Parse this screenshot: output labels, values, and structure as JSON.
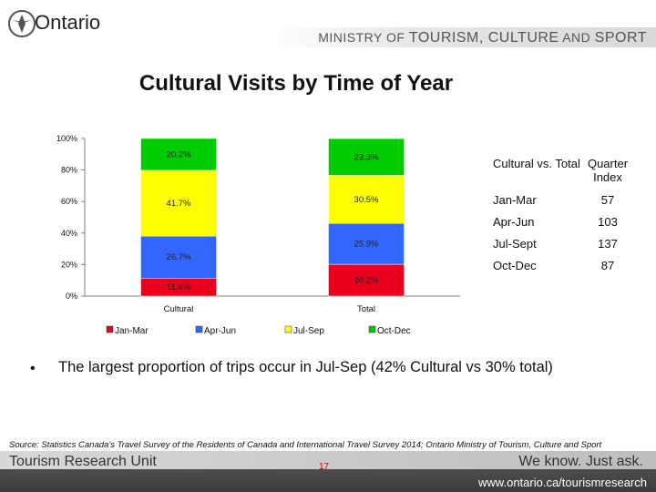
{
  "header": {
    "logo_text": "Ontario",
    "ministry_prefix": "MINISTRY OF ",
    "ministry_name_1": "TOURISM, CULTURE",
    "ministry_and": " AND ",
    "ministry_name_2": "SPORT"
  },
  "title": "Cultural Visits by Time of Year",
  "chart_data": {
    "type": "bar",
    "stacked": true,
    "categories": [
      "Cultural",
      "Total"
    ],
    "series": [
      {
        "name": "Jan-Mar",
        "values": [
          11.4,
          20.2
        ],
        "labels": [
          "11.4%",
          "20.2%"
        ],
        "color": "#e8001c"
      },
      {
        "name": "Apr-Jun",
        "values": [
          26.7,
          25.9
        ],
        "labels": [
          "26.7%",
          "25.9%"
        ],
        "color": "#3366ff"
      },
      {
        "name": "Jul-Sep",
        "values": [
          41.7,
          30.5
        ],
        "labels": [
          "41.7%",
          "30.5%"
        ],
        "color": "#ffff00"
      },
      {
        "name": "Oct-Dec",
        "values": [
          20.2,
          23.3
        ],
        "labels": [
          "20.2%",
          "23.3%"
        ],
        "color": "#00cc00"
      }
    ],
    "ylim": [
      0,
      100
    ],
    "yticks": [
      "0%",
      "20%",
      "40%",
      "60%",
      "80%",
      "100%"
    ],
    "grid": false,
    "legend": "bottom"
  },
  "index_table": {
    "headers": [
      "Cultural vs. Total",
      "Quarter Index"
    ],
    "rows": [
      {
        "label": "Jan-Mar",
        "value": "57"
      },
      {
        "label": "Apr-Jun",
        "value": "103"
      },
      {
        "label": "Jul-Sept",
        "value": "137"
      },
      {
        "label": "Oct-Dec",
        "value": "87"
      }
    ]
  },
  "bullet": {
    "symbol": "•",
    "text": "The largest proportion of trips occur in Jul-Sep (42% Cultural vs 30% total)"
  },
  "source": "Source: Statistics Canada’s Travel Survey of the Residents of Canada and International Travel Survey 2014; Ontario Ministry of Tourism, Culture and Sport",
  "footer": {
    "unit": "Tourism Research Unit",
    "page": "17",
    "slogan": "We know. Just ask.",
    "url": "www.ontario.ca/tourismresearch"
  }
}
